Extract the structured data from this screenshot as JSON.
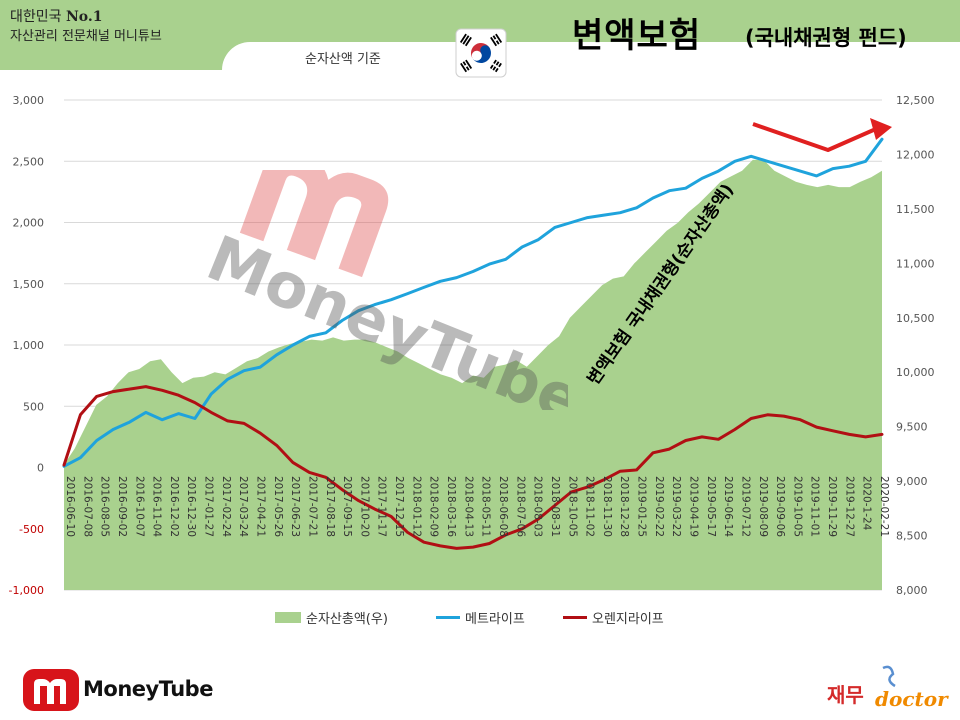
{
  "header": {
    "brand_line1_a": "대한민국 ",
    "brand_line1_b": "No.1",
    "brand_line2": "자산관리 전문채널 머니튜브",
    "basis": "순자산액 기준",
    "title": "변액보험",
    "subtitle": "(국내채권형 펀드)"
  },
  "footer": {
    "logo_text": "MoneyTube",
    "doctor_left": "재무",
    "doctor_right": "doctor"
  },
  "watermark_text": "MoneyTube",
  "colors": {
    "band": "#a9d18e",
    "area": "#a9d18e",
    "metlife": "#1fa3dc",
    "orange": "#b10f14",
    "arrow": "#e02020",
    "neg_tick": "#c00000"
  },
  "chart_data": {
    "type": "line",
    "ylim_left": [
      -1000,
      3000
    ],
    "ylim_right": [
      8000,
      12500
    ],
    "left_ticks": [
      3000,
      2500,
      2000,
      1500,
      1000,
      500,
      0,
      -500,
      -1000
    ],
    "right_ticks": [
      12500,
      12000,
      11500,
      11000,
      10500,
      10000,
      9500,
      9000,
      8500,
      8000
    ],
    "left_tick_labels": [
      "3,000",
      "2,500",
      "2,000",
      "1,500",
      "1,000",
      "500",
      "0",
      "-500",
      "-1,000"
    ],
    "right_tick_labels": [
      "12,500",
      "12,000",
      "11,500",
      "11,000",
      "10,500",
      "10,000",
      "9,500",
      "9,000",
      "8,500",
      "8,000"
    ],
    "x_labels": [
      "2016-06-10",
      "2016-07-08",
      "2016-08-05",
      "2016-09-02",
      "2016-10-07",
      "2016-11-04",
      "2016-12-02",
      "2016-12-30",
      "2017-01-27",
      "2017-02-24",
      "2017-03-24",
      "2017-04-21",
      "2017-05-26",
      "2017-06-23",
      "2017-07-21",
      "2017-08-18",
      "2017-09-15",
      "2017-10-20",
      "2017-11-17",
      "2017-12-15",
      "2018-01-12",
      "2018-02-09",
      "2018-03-16",
      "2018-04-13",
      "2018-05-11",
      "2018-06-08",
      "2018-07-06",
      "2018-08-03",
      "2018-08-31",
      "2018-10-05",
      "2018-11-02",
      "2018-11-30",
      "2018-12-28",
      "2019-01-25",
      "2019-02-22",
      "2019-03-22",
      "2019-04-19",
      "2019-05-17",
      "2019-06-14",
      "2019-07-12",
      "2019-08-09",
      "2019-09-06",
      "2019-10-05",
      "2019-11-01",
      "2019-11-29",
      "2019-12-27",
      "2020-1-24",
      "2020-02-21"
    ],
    "annotation": "변액보험 국내채권형(순자산총액)",
    "series": [
      {
        "name": "순자산총액(우)",
        "axis": "right",
        "type": "area",
        "values": [
          9150,
          9300,
          9500,
          9700,
          9780,
          9900,
          10000,
          10030,
          10100,
          10120,
          10000,
          9900,
          9950,
          9960,
          10000,
          9980,
          10040,
          10100,
          10130,
          10190,
          10230,
          10260,
          10280,
          10300,
          10290,
          10320,
          10290,
          10300,
          10300,
          10270,
          10230,
          10190,
          10130,
          10080,
          10030,
          9980,
          9950,
          9900,
          9970,
          9950,
          10050,
          10070,
          10110,
          10050,
          10150,
          10250,
          10330,
          10500,
          10600,
          10700,
          10800,
          10860,
          10880,
          11000,
          11100,
          11200,
          11300,
          11370,
          11470,
          11550,
          11650,
          11750,
          11800,
          11850,
          11950,
          11950,
          11850,
          11800,
          11750,
          11720,
          11700,
          11720,
          11700,
          11700,
          11750,
          11790,
          11850
        ]
      },
      {
        "name": "메트라이프",
        "axis": "left",
        "type": "line",
        "values": [
          10,
          80,
          220,
          310,
          370,
          450,
          390,
          440,
          400,
          600,
          720,
          790,
          820,
          920,
          1000,
          1070,
          1100,
          1200,
          1280,
          1330,
          1370,
          1420,
          1470,
          1520,
          1550,
          1600,
          1660,
          1700,
          1800,
          1860,
          1960,
          2000,
          2040,
          2060,
          2080,
          2120,
          2200,
          2260,
          2280,
          2360,
          2420,
          2500,
          2540,
          2500,
          2460,
          2420,
          2380,
          2440,
          2460,
          2500,
          2680
        ]
      },
      {
        "name": "오렌지라이프",
        "axis": "left",
        "type": "line",
        "values": [
          20,
          430,
          580,
          620,
          640,
          660,
          630,
          590,
          530,
          450,
          380,
          360,
          280,
          180,
          40,
          -40,
          -80,
          -180,
          -270,
          -340,
          -400,
          -530,
          -610,
          -640,
          -660,
          -650,
          -620,
          -550,
          -500,
          -420,
          -310,
          -200,
          -160,
          -100,
          -30,
          -20,
          120,
          150,
          220,
          250,
          230,
          310,
          400,
          430,
          420,
          390,
          330,
          300,
          270,
          250,
          270
        ]
      }
    ]
  }
}
